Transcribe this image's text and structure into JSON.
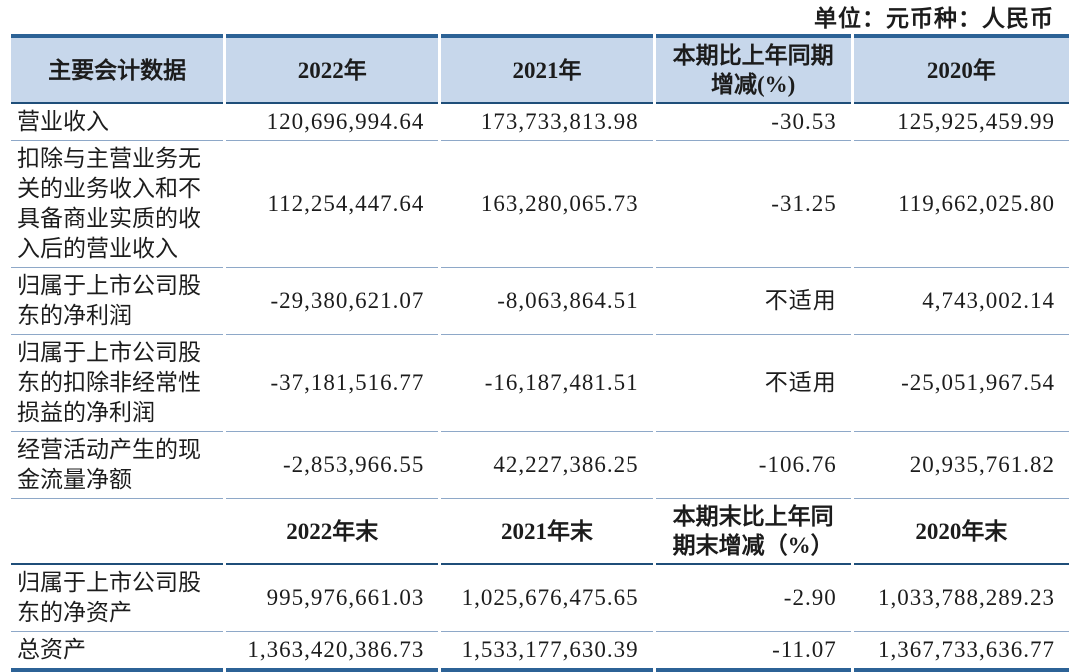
{
  "unit_note": "单位：元币种：人民币",
  "colors": {
    "accent_border": "#2c6296",
    "header_bg": "#c7d7eb",
    "divider_dark": "#1f4e79",
    "divider_light": "#8ea8c8"
  },
  "table": {
    "header": {
      "label": "主要会计数据",
      "y2022": "2022年",
      "y2021": "2021年",
      "change": "本期比上年同期\n增减(%)",
      "y2020": "2020年"
    },
    "rows": [
      {
        "label": "营业收入",
        "values": [
          "120,696,994.64",
          "173,733,813.98",
          "-30.53",
          "125,925,459.99"
        ]
      },
      {
        "label": "扣除与主营业务无\n关的业务收入和不\n具备商业实质的收\n入后的营业收入",
        "values": [
          "112,254,447.64",
          "163,280,065.73",
          "-31.25",
          "119,662,025.80"
        ]
      },
      {
        "label": "归属于上市公司股\n东的净利润",
        "values": [
          "-29,380,621.07",
          "-8,063,864.51",
          "不适用",
          "4,743,002.14"
        ]
      },
      {
        "label": "归属于上市公司股\n东的扣除非经常性\n损益的净利润",
        "values": [
          "-37,181,516.77",
          "-16,187,481.51",
          "不适用",
          "-25,051,967.54"
        ]
      },
      {
        "label": "经营活动产生的现\n金流量净额",
        "values": [
          "-2,853,966.55",
          "42,227,386.25",
          "-106.76",
          "20,935,761.82"
        ]
      }
    ],
    "header_end": {
      "label": "",
      "y2022": "2022年末",
      "y2021": "2021年末",
      "change": "本期末比上年同\n期末增减（%）",
      "y2020": "2020年末"
    },
    "end_rows": [
      {
        "label": "归属于上市公司股\n东的净资产",
        "values": [
          "995,976,661.03",
          "1,025,676,475.65",
          "-2.90",
          "1,033,788,289.23"
        ]
      },
      {
        "label": "总资产",
        "values": [
          "1,363,420,386.73",
          "1,533,177,630.39",
          "-11.07",
          "1,367,733,636.77"
        ]
      }
    ]
  }
}
